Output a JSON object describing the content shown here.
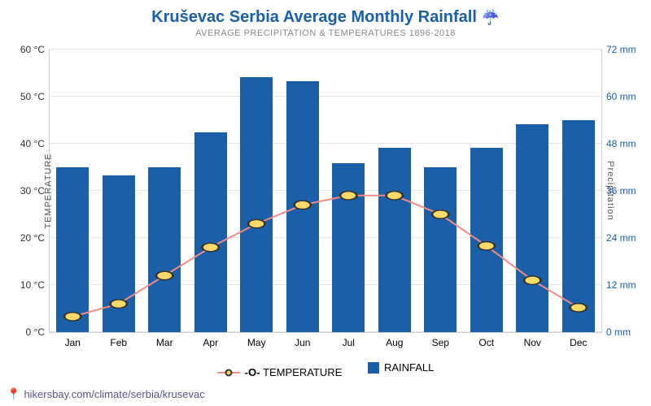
{
  "title": "Kruševac Serbia Average Monthly Rainfall",
  "title_icon": "☔",
  "subtitle": "AVERAGE PRECIPITATION & TEMPERATURES 1896-2018",
  "title_color": "#1a5fa8",
  "chart": {
    "type": "bar+line",
    "categories": [
      "Jan",
      "Feb",
      "Mar",
      "Apr",
      "May",
      "Jun",
      "Jul",
      "Aug",
      "Sep",
      "Oct",
      "Nov",
      "Dec"
    ],
    "left_axis": {
      "label": "TEMPERATURE",
      "unit": "°C",
      "min": 0,
      "max": 60,
      "step": 10,
      "tick_color": "#333333"
    },
    "right_axis": {
      "label": "Precipitation",
      "unit": "mm",
      "min": 0,
      "max": 72,
      "step": 12,
      "tick_color": "#1a5fa8"
    },
    "bars": {
      "name": "RAINFALL",
      "values_mm": [
        42,
        40,
        42,
        51,
        65,
        64,
        43,
        47,
        42,
        47,
        53,
        54
      ],
      "color": "#1a5fa8",
      "width_frac": 0.7
    },
    "line": {
      "name": "TEMPERATURE",
      "values_c": [
        3.3,
        6,
        12,
        18,
        23,
        27,
        29,
        29,
        25,
        18.3,
        11,
        5.2
      ],
      "line_color": "#f28b82",
      "line_width": 2,
      "marker_fill": "#ffd966",
      "marker_stroke": "#333333",
      "marker_radius": 5
    },
    "grid_color": "#e5e5e5",
    "background": "#ffffff"
  },
  "legend": {
    "temperature": "TEMPERATURE",
    "rainfall": "RAINFALL"
  },
  "footer": {
    "icon": "📍",
    "text": "hikersbay.com/climate/serbia/krusevac"
  }
}
